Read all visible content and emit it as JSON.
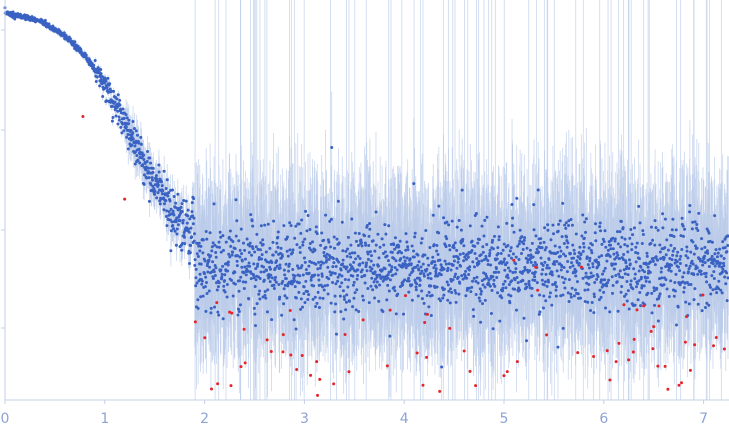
{
  "chart_data": {
    "type": "scatter",
    "title": "",
    "xlabel": "",
    "ylabel": "",
    "x_ticks": [
      "0",
      "1",
      "2",
      "3",
      "4",
      "5",
      "6",
      "7"
    ],
    "xlim": [
      0,
      7.25
    ],
    "y_scale": "log",
    "y_ticks_unlabeled": 4,
    "grid": false,
    "legend": "none",
    "colors": {
      "points": "#3a62c2",
      "error_bars": "#b9cae9",
      "outliers": "#e3262b",
      "axis": "#c5cfe8",
      "tick_labels": "#8ea3d6"
    },
    "series": [
      {
        "role": "experimental intensity (log scale, unitless)",
        "points": [
          [
            0.02,
            1.05
          ],
          [
            0.05,
            1.03
          ],
          [
            0.1,
            1.0
          ],
          [
            0.15,
            0.99
          ],
          [
            0.2,
            0.97
          ],
          [
            0.25,
            0.95
          ],
          [
            0.3,
            0.93
          ],
          [
            0.35,
            0.9
          ],
          [
            0.4,
            0.86
          ],
          [
            0.45,
            0.82
          ],
          [
            0.5,
            0.78
          ],
          [
            0.55,
            0.74
          ],
          [
            0.6,
            0.69
          ],
          [
            0.65,
            0.64
          ],
          [
            0.7,
            0.59
          ],
          [
            0.75,
            0.54
          ],
          [
            0.8,
            0.49
          ],
          [
            0.85,
            0.44
          ],
          [
            0.9,
            0.39
          ],
          [
            0.95,
            0.34
          ],
          [
            1.0,
            0.29
          ],
          [
            1.05,
            0.25
          ],
          [
            1.1,
            0.21
          ],
          [
            1.15,
            0.18
          ],
          [
            1.2,
            0.15
          ],
          [
            1.25,
            0.12
          ],
          [
            1.3,
            0.1
          ],
          [
            1.35,
            0.085
          ],
          [
            1.4,
            0.07
          ],
          [
            1.45,
            0.06
          ],
          [
            1.5,
            0.05
          ],
          [
            1.6,
            0.038
          ],
          [
            1.7,
            0.03
          ],
          [
            1.8,
            0.025
          ],
          [
            1.9,
            0.021
          ],
          [
            2.0,
            0.018
          ]
        ]
      },
      {
        "role": "high-q noise band",
        "x_range": [
          1.9,
          7.25
        ],
        "y_median": 0.012,
        "y_spread_decades": 0.5
      }
    ],
    "outliers_note_x_range": [
      0.0,
      7.25
    ]
  }
}
